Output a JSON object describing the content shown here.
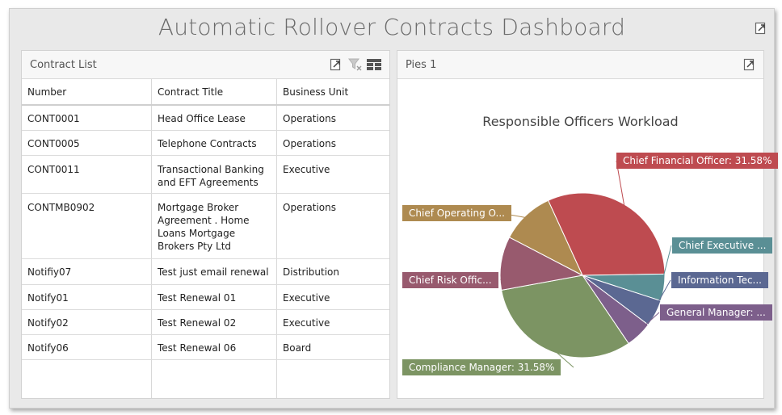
{
  "dashboard": {
    "title": "Automatic Rollover Contracts Dashboard"
  },
  "contract_list": {
    "title": "Contract List",
    "columns": [
      "Number",
      "Contract Title",
      "Business Unit"
    ],
    "rows": [
      {
        "number": "CONT0001",
        "title": "Head Office Lease",
        "unit": "Operations"
      },
      {
        "number": "CONT0005",
        "title": "Telephone Contracts",
        "unit": "Operations"
      },
      {
        "number": "CONT0011",
        "title": "Transactional Banking and EFT Agreements",
        "unit": "Executive"
      },
      {
        "number": "CONTMB0902",
        "title": "Mortgage Broker Agreement . Home Loans Mortgage Brokers Pty Ltd",
        "unit": "Operations"
      },
      {
        "number": "Notifiy07",
        "title": "Test just email renewal",
        "unit": "Distribution"
      },
      {
        "number": "Notify01",
        "title": "Test Renewal 01",
        "unit": "Executive"
      },
      {
        "number": "Notify02",
        "title": "Test Renewal 02",
        "unit": "Executive"
      },
      {
        "number": "Notify06",
        "title": "Test Renewal 06",
        "unit": "Board"
      }
    ]
  },
  "pie_panel": {
    "title": "Pies 1",
    "chart_title": "Responsible Officers Workload"
  },
  "chart_data": {
    "type": "pie",
    "title": "Responsible Officers Workload",
    "slices": [
      {
        "label": "Chief Financial Officer: 31.58%",
        "value": 31.58,
        "color": "#be4b50"
      },
      {
        "label": "Chief Executive ...",
        "value": 5.26,
        "color": "#5a8f95"
      },
      {
        "label": "Information Tec...",
        "value": 5.26,
        "color": "#5b6892"
      },
      {
        "label": "General Manager: ...",
        "value": 5.26,
        "color": "#7d5f8b"
      },
      {
        "label": "Compliance Manager: 31.58%",
        "value": 31.58,
        "color": "#7c9463"
      },
      {
        "label": "Chief Risk Offic...",
        "value": 10.53,
        "color": "#985a6e"
      },
      {
        "label": "Chief Operating O...",
        "value": 10.53,
        "color": "#ae8a50"
      }
    ]
  }
}
